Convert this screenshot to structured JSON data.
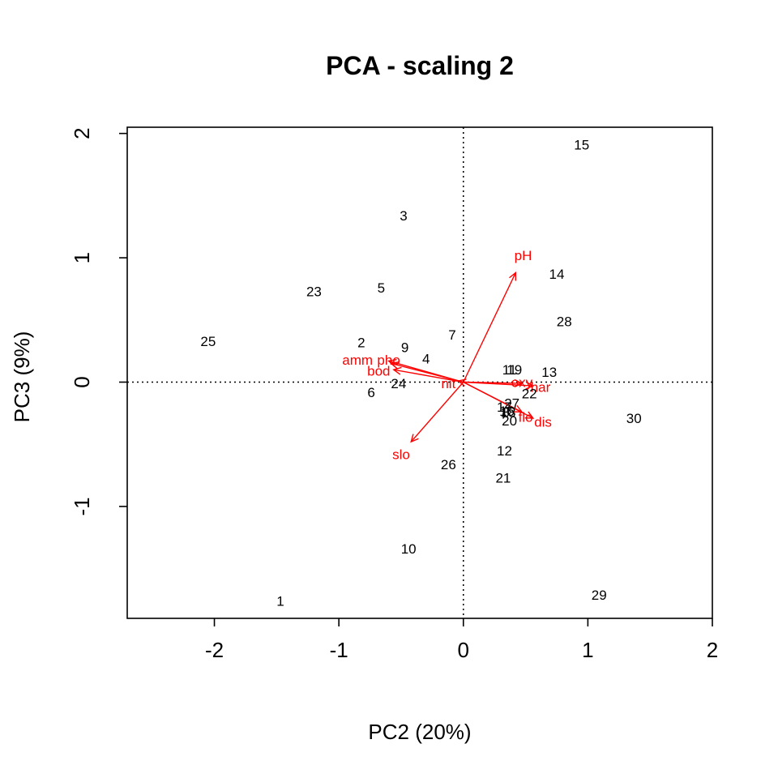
{
  "chart_data": {
    "type": "scatter",
    "title": "PCA - scaling 2",
    "xlabel": "PC2 (20%)",
    "ylabel": "PC3 (9%)",
    "xlim": [
      -2.7,
      2.0
    ],
    "ylim": [
      -1.9,
      2.05
    ],
    "xticks": [
      -2,
      -1,
      0,
      1,
      2
    ],
    "yticks": [
      -1,
      0,
      1,
      2
    ],
    "origin_lines": "dotted",
    "sites": [
      {
        "label": "1",
        "x": -1.47,
        "y": -1.76
      },
      {
        "label": "2",
        "x": -0.82,
        "y": 0.32
      },
      {
        "label": "3",
        "x": -0.48,
        "y": 1.34
      },
      {
        "label": "4",
        "x": -0.3,
        "y": 0.19
      },
      {
        "label": "5",
        "x": -0.66,
        "y": 0.76
      },
      {
        "label": "6",
        "x": -0.74,
        "y": -0.08
      },
      {
        "label": "7",
        "x": -0.09,
        "y": 0.38
      },
      {
        "label": "8",
        "x": 0.34,
        "y": -0.24
      },
      {
        "label": "9",
        "x": -0.47,
        "y": 0.28
      },
      {
        "label": "10",
        "x": -0.44,
        "y": -1.34
      },
      {
        "label": "11",
        "x": 0.37,
        "y": 0.1
      },
      {
        "label": "12",
        "x": 0.33,
        "y": -0.55
      },
      {
        "label": "13",
        "x": 0.69,
        "y": 0.08
      },
      {
        "label": "14",
        "x": 0.75,
        "y": 0.87
      },
      {
        "label": "15",
        "x": 0.95,
        "y": 1.91
      },
      {
        "label": "16",
        "x": 0.35,
        "y": -0.23
      },
      {
        "label": "17",
        "x": 0.33,
        "y": -0.2
      },
      {
        "label": "18",
        "x": 0.36,
        "y": -0.24
      },
      {
        "label": "19",
        "x": 0.41,
        "y": 0.1
      },
      {
        "label": "20",
        "x": 0.37,
        "y": -0.31
      },
      {
        "label": "21",
        "x": 0.32,
        "y": -0.77
      },
      {
        "label": "22",
        "x": 0.53,
        "y": -0.09
      },
      {
        "label": "23",
        "x": -1.2,
        "y": 0.73
      },
      {
        "label": "24",
        "x": -0.52,
        "y": -0.01
      },
      {
        "label": "25",
        "x": -2.05,
        "y": 0.33
      },
      {
        "label": "26",
        "x": -0.12,
        "y": -0.66
      },
      {
        "label": "27",
        "x": 0.39,
        "y": -0.17
      },
      {
        "label": "28",
        "x": 0.81,
        "y": 0.49
      },
      {
        "label": "29",
        "x": 1.09,
        "y": -1.71
      },
      {
        "label": "30",
        "x": 1.37,
        "y": -0.29
      }
    ],
    "variables": [
      {
        "label": "pH",
        "x": 0.42,
        "y": 0.88,
        "label_x": 0.48,
        "label_y": 1.02
      },
      {
        "label": "slo",
        "x": -0.42,
        "y": -0.48,
        "label_x": -0.5,
        "label_y": -0.58
      },
      {
        "label": "amm",
        "x": -0.6,
        "y": 0.17,
        "label_x": -0.85,
        "label_y": 0.18
      },
      {
        "label": "pho",
        "x": -0.58,
        "y": 0.15,
        "label_x": -0.6,
        "label_y": 0.18
      },
      {
        "label": "bod",
        "x": -0.56,
        "y": 0.1,
        "label_x": -0.68,
        "label_y": 0.09
      },
      {
        "label": "nit",
        "x": -0.04,
        "y": 0.01,
        "label_x": -0.12,
        "label_y": -0.01
      },
      {
        "label": "oxy",
        "x": 0.47,
        "y": -0.01,
        "label_x": 0.47,
        "label_y": 0.0
      },
      {
        "label": "har",
        "x": 0.56,
        "y": -0.03,
        "label_x": 0.62,
        "label_y": -0.04
      },
      {
        "label": "flo",
        "x": 0.47,
        "y": -0.24,
        "label_x": 0.5,
        "label_y": -0.28
      },
      {
        "label": "dis",
        "x": 0.56,
        "y": -0.29,
        "label_x": 0.64,
        "label_y": -0.32
      }
    ],
    "colors": {
      "sites": "#000000",
      "variables": "#ff0000"
    }
  }
}
